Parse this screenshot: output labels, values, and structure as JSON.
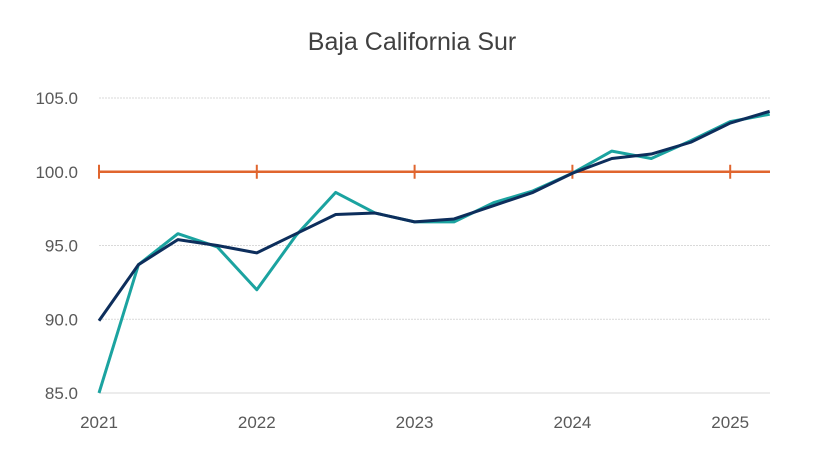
{
  "chart_data": {
    "type": "line",
    "title": "Baja California Sur",
    "xlabel": "",
    "ylabel": "",
    "ylim": [
      85,
      105
    ],
    "yticks": [
      "85.0",
      "90.0",
      "95.0",
      "100.0",
      "105.0"
    ],
    "xticks": [
      "2021",
      "2022",
      "2023",
      "2024",
      "2025"
    ],
    "x": [
      "2021Q1",
      "2021Q2",
      "2021Q3",
      "2021Q4",
      "2022Q1",
      "2022Q2",
      "2022Q3",
      "2022Q4",
      "2023Q1",
      "2023Q2",
      "2023Q3",
      "2023Q4",
      "2024Q1",
      "2024Q2",
      "2024Q3",
      "2024Q4",
      "2025Q1",
      "2025Q2"
    ],
    "grid": true,
    "reference_line": {
      "value": 100.0,
      "color": "#E0652E"
    },
    "series": [
      {
        "color": "#1BA3A0",
        "values": [
          85.0,
          93.7,
          95.8,
          94.9,
          92.0,
          95.7,
          98.6,
          97.2,
          96.6,
          96.6,
          97.9,
          98.7,
          99.9,
          101.4,
          100.9,
          102.1,
          103.4,
          103.9
        ]
      },
      {
        "color": "#0D2E5C",
        "values": [
          89.9,
          93.7,
          95.4,
          95.0,
          94.5,
          95.8,
          97.1,
          97.2,
          96.6,
          96.8,
          97.7,
          98.6,
          99.9,
          100.9,
          101.2,
          102.0,
          103.3,
          104.1
        ]
      }
    ]
  }
}
